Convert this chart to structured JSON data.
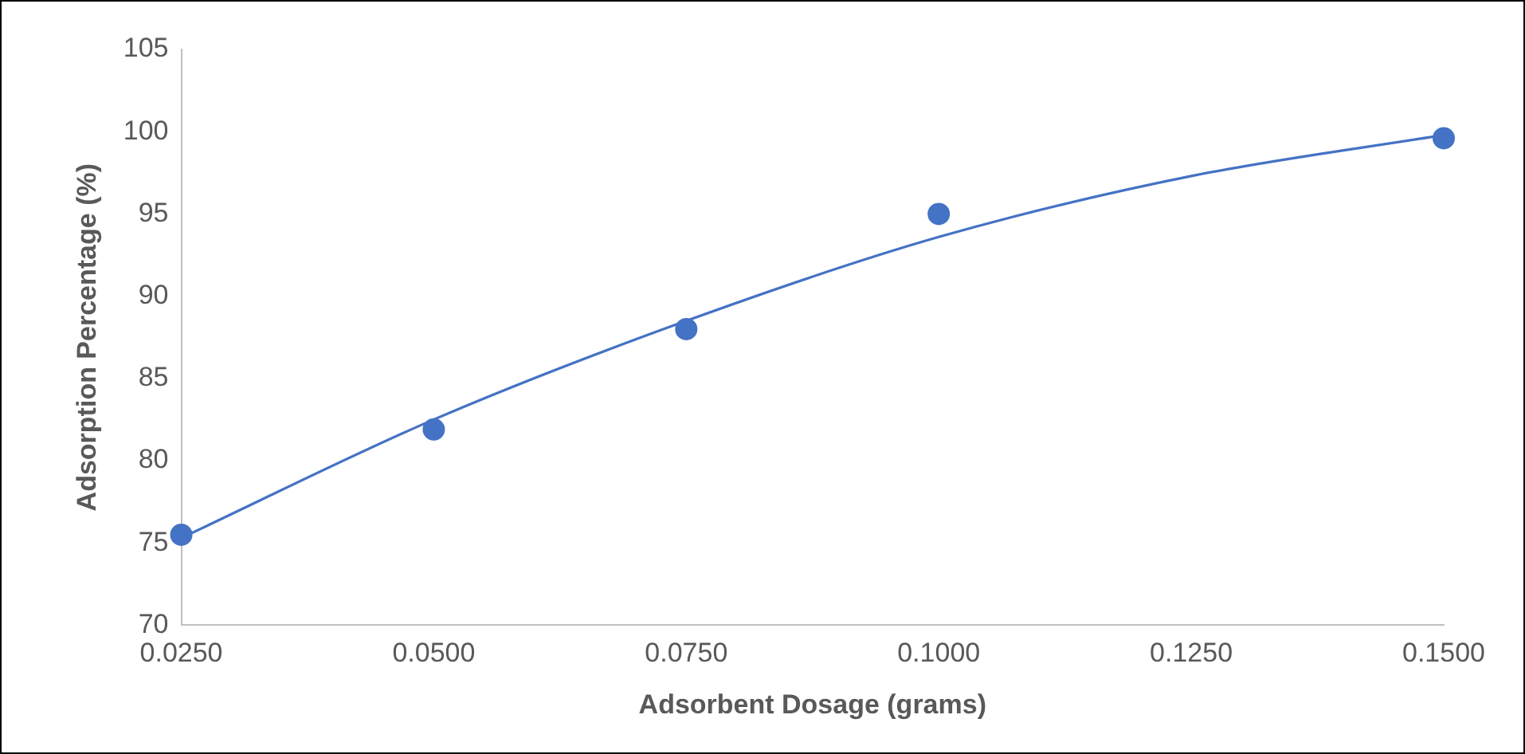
{
  "chart_data": {
    "type": "scatter",
    "xlabel": "Adsorbent Dosage (grams)",
    "ylabel": "Adsorption Percentage (%)",
    "xlim": [
      0.025,
      0.15
    ],
    "xticks": [
      {
        "value": 0.025,
        "label": "0.0250"
      },
      {
        "value": 0.05,
        "label": "0.0500"
      },
      {
        "value": 0.075,
        "label": "0.0750"
      },
      {
        "value": 0.1,
        "label": "0.1000"
      },
      {
        "value": 0.125,
        "label": "0.1250"
      },
      {
        "value": 0.15,
        "label": "0.1500"
      }
    ],
    "ylim": [
      70,
      105
    ],
    "yticks": [
      70,
      75,
      80,
      85,
      90,
      95,
      100,
      105
    ],
    "grid": false,
    "legend": false,
    "series": [
      {
        "type": "scatter",
        "color": "#4472c4",
        "marker": "circle",
        "x": [
          0.025,
          0.05,
          0.075,
          0.1,
          0.15
        ],
        "values": [
          75.5,
          81.9,
          88,
          95,
          99.6
        ]
      },
      {
        "type": "line",
        "color": "#4472c4",
        "marker": "none",
        "line_style": "solid",
        "x": [
          0.025,
          0.05,
          0.075,
          0.1,
          0.125,
          0.15
        ],
        "values": [
          75.3,
          82.5,
          88.5,
          93.6,
          97.3,
          99.8
        ]
      }
    ]
  }
}
